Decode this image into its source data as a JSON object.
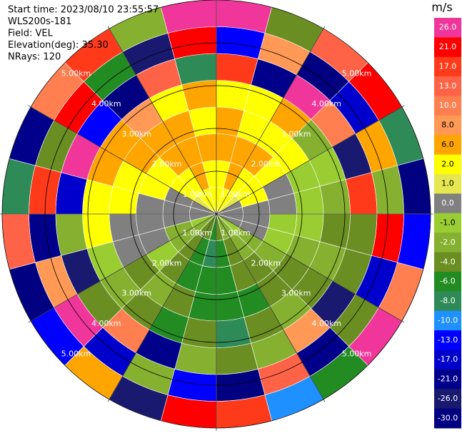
{
  "chart_data": {
    "type": "ppi",
    "annotations": [
      "Start time: 2023/08/10 23:55:57",
      "WLS200s-181",
      "Field: VEL",
      "Elevation(deg): 35.30",
      "NRays: 120"
    ],
    "azimuths": [
      0,
      15,
      30,
      45,
      60,
      75,
      90,
      105,
      120,
      135,
      150,
      165,
      180,
      195,
      210,
      225,
      240,
      255,
      270,
      285,
      300,
      315,
      330,
      345
    ],
    "ranges": [
      0,
      0.625,
      1.25,
      1.875,
      2.5,
      3.125,
      3.75,
      4.375,
      5
    ],
    "rlim": [
      0,
      5
    ],
    "rings": [
      {
        "value": 1,
        "label": "1.00km"
      },
      {
        "value": 2,
        "label": "2.00km"
      },
      {
        "value": 3,
        "label": "3.00km"
      },
      {
        "value": 4,
        "label": "4.00km"
      },
      {
        "value": 5,
        "label": "5.00km"
      }
    ],
    "values": [
      [
        2,
        2,
        6,
        6,
        2,
        17,
        -13,
        26
      ],
      [
        2,
        6,
        6,
        2,
        2,
        -21,
        8,
        -4
      ],
      [
        2,
        2,
        6,
        2,
        6,
        26,
        -30,
        13
      ],
      [
        1,
        2,
        2,
        2,
        -2,
        10,
        -17,
        21
      ],
      [
        0,
        2,
        0,
        -1,
        -1,
        -26,
        6,
        -8
      ],
      [
        0,
        0,
        0,
        -1,
        -2,
        17,
        -2,
        -30
      ],
      [
        0,
        0,
        -1,
        -1,
        -4,
        -4,
        21,
        -13
      ],
      [
        0,
        0,
        -1,
        -2,
        -2,
        -4,
        -17,
        10
      ],
      [
        -1,
        -2,
        -2,
        -4,
        -4,
        -26,
        -4,
        26
      ],
      [
        -2,
        -2,
        -4,
        -4,
        -2,
        8,
        -21,
        -6
      ],
      [
        -2,
        -4,
        -4,
        -6,
        -4,
        -2,
        13,
        -10
      ],
      [
        -4,
        -6,
        -6,
        -6,
        -8,
        -4,
        -30,
        17
      ],
      [
        -6,
        -8,
        -6,
        -6,
        -4,
        -2,
        -13,
        21
      ],
      [
        -4,
        -6,
        -6,
        -4,
        -6,
        -21,
        -2,
        -26
      ],
      [
        -4,
        -4,
        -4,
        -2,
        -4,
        10,
        -17,
        6
      ],
      [
        -2,
        -2,
        -1,
        -4,
        -2,
        -4,
        26,
        -13
      ],
      [
        -1,
        -2,
        0,
        0,
        -1,
        -26,
        8,
        -30
      ],
      [
        0,
        0,
        0,
        0,
        2,
        -2,
        -21,
        13
      ],
      [
        0,
        0,
        0,
        2,
        2,
        -17,
        17,
        -8
      ],
      [
        0,
        0,
        2,
        2,
        6,
        26,
        -4,
        -21
      ],
      [
        1,
        2,
        2,
        6,
        6,
        -13,
        21,
        10
      ],
      [
        2,
        2,
        6,
        6,
        8,
        -30,
        -6,
        17
      ],
      [
        2,
        6,
        6,
        6,
        2,
        13,
        -26,
        -2
      ],
      [
        2,
        2,
        6,
        2,
        6,
        -8,
        21,
        26
      ]
    ],
    "colorbar": {
      "label": "m/s",
      "ticks": [
        {
          "value": 26,
          "label": "26.0"
        },
        {
          "value": 21,
          "label": "21.0"
        },
        {
          "value": 17,
          "label": "17.0"
        },
        {
          "value": 13,
          "label": "13.0"
        },
        {
          "value": 10,
          "label": "10.0"
        },
        {
          "value": 8,
          "label": "8.0"
        },
        {
          "value": 6,
          "label": "6.0"
        },
        {
          "value": 2,
          "label": "2.0"
        },
        {
          "value": 1,
          "label": "1.0"
        },
        {
          "value": 0,
          "label": "0.0"
        },
        {
          "value": -1,
          "label": "-1.0"
        },
        {
          "value": -2,
          "label": "-2.0"
        },
        {
          "value": -4,
          "label": "-4.0"
        },
        {
          "value": -6,
          "label": "-6.0"
        },
        {
          "value": -8,
          "label": "-8.0"
        },
        {
          "value": -10,
          "label": "-10.0"
        },
        {
          "value": -13,
          "label": "-13.0"
        },
        {
          "value": -17,
          "label": "-17.0"
        },
        {
          "value": -21,
          "label": "-21.0"
        },
        {
          "value": -26,
          "label": "-26.0"
        },
        {
          "value": -30,
          "label": "-30.0"
        }
      ],
      "colors": [
        "#f0369b",
        "#ff0000",
        "#ff3a1a",
        "#ff6347",
        "#ff7f50",
        "#ff9955",
        "#ffa500",
        "#ffff00",
        "#e6e650",
        "#808080",
        "#9acd32",
        "#85b030",
        "#6b8e23",
        "#228b22",
        "#2e8b57",
        "#1e90ff",
        "#0000ff",
        "#0000cd",
        "#00008b",
        "#191970",
        "#000080"
      ]
    }
  }
}
